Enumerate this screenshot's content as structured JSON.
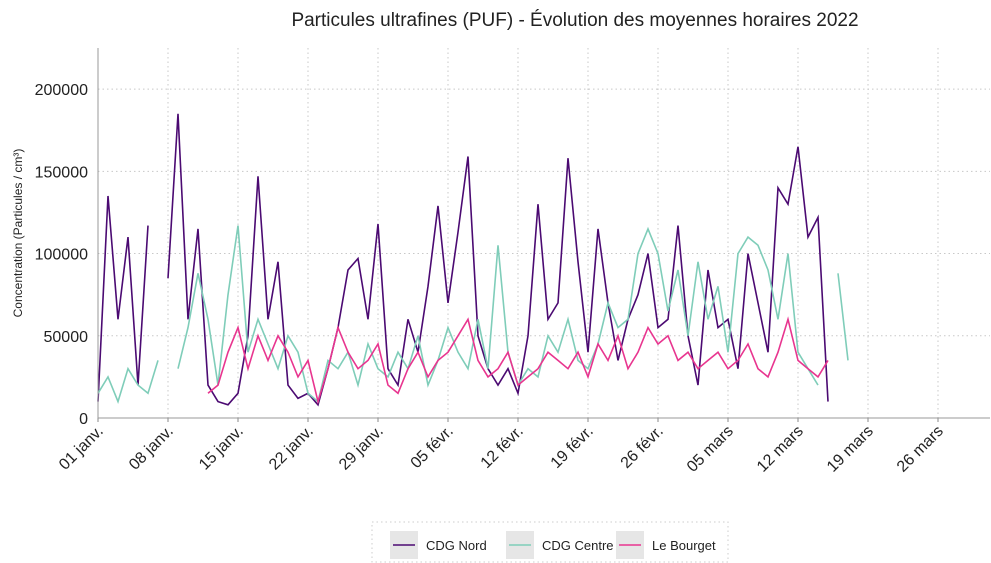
{
  "chart_data": {
    "type": "line",
    "title": "Particules ultrafines (PUF)  - Évolution des moyennes horaires 2022",
    "y_label": "Concentration (Particules / cm³)",
    "x": [
      0,
      1,
      2,
      3,
      4,
      5,
      6,
      7,
      8,
      9,
      10,
      11,
      12,
      13,
      14,
      15,
      16,
      17,
      18,
      19,
      20,
      21,
      22,
      23,
      24,
      25,
      26,
      27,
      28,
      29,
      30,
      31,
      32,
      33,
      34,
      35,
      36,
      37,
      38,
      39,
      40,
      41,
      42,
      43,
      44,
      45,
      46,
      47,
      48,
      49,
      50,
      51,
      52,
      53,
      54,
      55,
      56,
      57,
      58,
      59,
      60,
      61,
      62,
      63,
      64,
      65,
      66,
      67,
      68,
      69,
      70,
      71,
      72,
      73,
      74,
      75
    ],
    "series": [
      {
        "name": "CDG Nord",
        "color": "#4b0a72",
        "values": [
          10000,
          135000,
          60000,
          110000,
          20000,
          117000,
          null,
          85000,
          185000,
          60000,
          115000,
          20000,
          10000,
          8000,
          15000,
          50000,
          147000,
          60000,
          95000,
          20000,
          12000,
          15000,
          8000,
          30000,
          55000,
          90000,
          97000,
          60000,
          118000,
          30000,
          20000,
          60000,
          40000,
          80000,
          129000,
          70000,
          113000,
          159000,
          50000,
          30000,
          20000,
          30000,
          15000,
          50000,
          130000,
          60000,
          70000,
          158000,
          95000,
          40000,
          115000,
          70000,
          35000,
          60000,
          75000,
          100000,
          55000,
          60000,
          117000,
          50000,
          20000,
          90000,
          55000,
          60000,
          30000,
          100000,
          70000,
          40000,
          140000,
          130000,
          165000,
          110000,
          122000,
          10000,
          null,
          null
        ]
      },
      {
        "name": "CDG Centre",
        "color": "#7fcdb9",
        "values": [
          15000,
          25000,
          10000,
          30000,
          20000,
          15000,
          35000,
          null,
          30000,
          55000,
          88000,
          60000,
          20000,
          75000,
          117000,
          40000,
          60000,
          45000,
          30000,
          50000,
          40000,
          15000,
          10000,
          35000,
          30000,
          40000,
          20000,
          45000,
          30000,
          25000,
          40000,
          30000,
          50000,
          20000,
          35000,
          55000,
          40000,
          30000,
          60000,
          30000,
          105000,
          40000,
          20000,
          30000,
          25000,
          50000,
          40000,
          60000,
          35000,
          30000,
          45000,
          70000,
          55000,
          60000,
          100000,
          115000,
          100000,
          65000,
          90000,
          50000,
          95000,
          60000,
          80000,
          40000,
          100000,
          110000,
          105000,
          90000,
          60000,
          100000,
          40000,
          30000,
          20000,
          null,
          88000,
          35000
        ]
      },
      {
        "name": "Le Bourget",
        "color": "#e8358f",
        "values": [
          null,
          null,
          null,
          null,
          null,
          null,
          null,
          null,
          null,
          null,
          null,
          15000,
          20000,
          40000,
          55000,
          30000,
          50000,
          35000,
          50000,
          40000,
          25000,
          35000,
          10000,
          30000,
          55000,
          40000,
          30000,
          35000,
          45000,
          20000,
          15000,
          30000,
          40000,
          25000,
          35000,
          40000,
          50000,
          60000,
          35000,
          25000,
          30000,
          40000,
          20000,
          25000,
          30000,
          40000,
          35000,
          30000,
          40000,
          25000,
          45000,
          35000,
          50000,
          30000,
          40000,
          55000,
          45000,
          50000,
          35000,
          40000,
          30000,
          35000,
          40000,
          30000,
          35000,
          45000,
          30000,
          25000,
          40000,
          60000,
          35000,
          30000,
          25000,
          35000,
          null,
          null
        ]
      }
    ],
    "xlim": [
      0,
      89.2
    ],
    "xticks": [
      {
        "value": 0,
        "label": "01 janv."
      },
      {
        "value": 7,
        "label": "08 janv."
      },
      {
        "value": 14,
        "label": "15 janv."
      },
      {
        "value": 21,
        "label": "22 janv."
      },
      {
        "value": 28,
        "label": "29 janv."
      },
      {
        "value": 35,
        "label": "05 févr."
      },
      {
        "value": 42,
        "label": "12 févr."
      },
      {
        "value": 49,
        "label": "19 févr."
      },
      {
        "value": 56,
        "label": "26 févr."
      },
      {
        "value": 63,
        "label": "05 mars"
      },
      {
        "value": 70,
        "label": "12 mars"
      },
      {
        "value": 77,
        "label": "19 mars"
      },
      {
        "value": 84,
        "label": "26 mars"
      }
    ],
    "ylim": [
      0,
      225000
    ],
    "yticks": [
      0,
      50000,
      100000,
      150000,
      200000
    ],
    "grid": true,
    "legend": "bottom"
  }
}
